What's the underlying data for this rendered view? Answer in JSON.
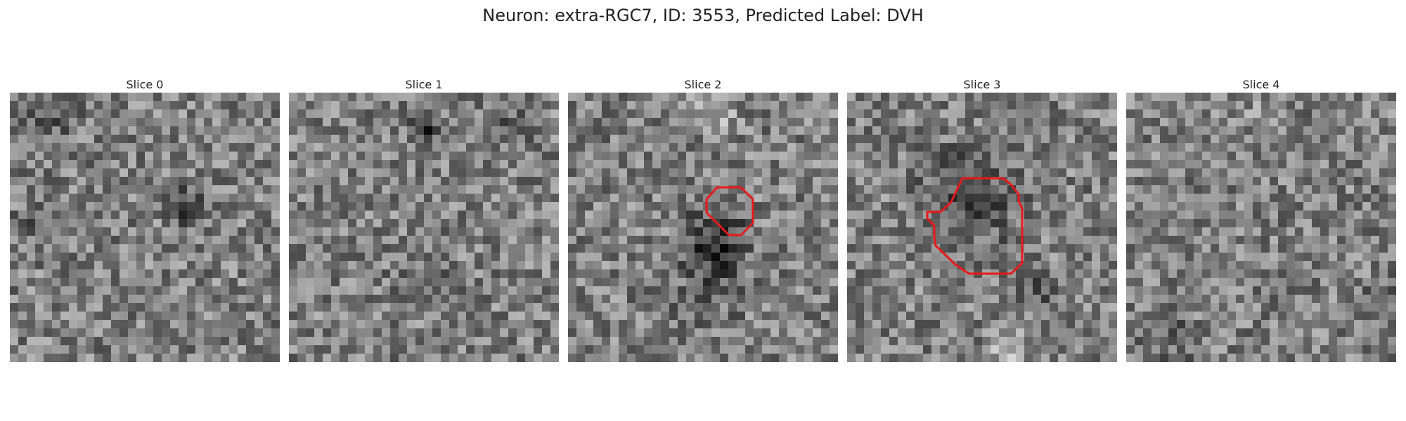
{
  "figure": {
    "title": "Neuron: extra-RGC7, ID: 3553, Predicted Label: DVH"
  },
  "slices": [
    {
      "label": "Slice 0",
      "has_roi": false
    },
    {
      "label": "Slice 1",
      "has_roi": false
    },
    {
      "label": "Slice 2",
      "has_roi": true
    },
    {
      "label": "Slice 3",
      "has_roi": true
    },
    {
      "label": "Slice 4",
      "has_roi": false
    }
  ],
  "colors": {
    "roi_outline": "#e8191c"
  }
}
